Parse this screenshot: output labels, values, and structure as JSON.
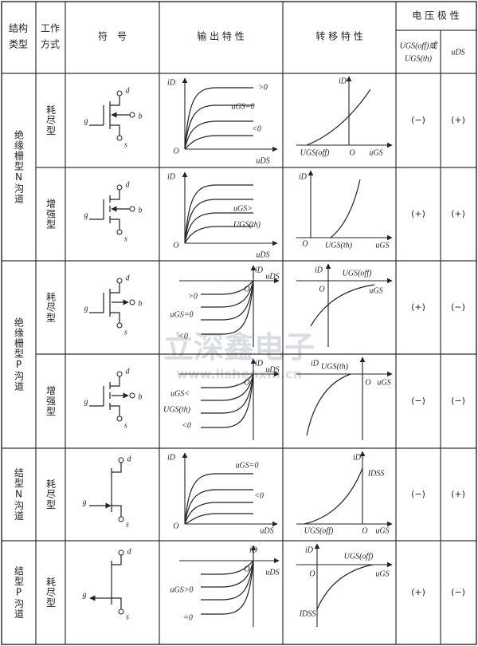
{
  "header": {
    "structure_type": [
      "结构",
      "类型"
    ],
    "work_mode": [
      "工作",
      "方式"
    ],
    "symbol": "符　号",
    "output": "输 出 特 性",
    "transfer": "转 移 特 性",
    "polarity": "电 压 极 性",
    "polarity_gs": [
      "UGS(off)或",
      "UGS(th)"
    ],
    "polarity_ds": "uDS"
  },
  "groups": [
    "绝缘栅型N沟道",
    "绝缘栅型P沟道",
    "结型N沟道",
    "结型P沟道"
  ],
  "rows": [
    {
      "mode": "耗尽型",
      "symbol": [
        "d",
        "g",
        "b",
        "s"
      ],
      "output": [
        "iD",
        "O",
        "uDS",
        ">0",
        "uGS=0",
        "<0"
      ],
      "transfer": [
        "iD",
        "O",
        "UGS(off)",
        "uGS"
      ],
      "gs": "(−)",
      "ds": "(+)"
    },
    {
      "mode": "增强型",
      "symbol": [
        "d",
        "g",
        "b",
        "s"
      ],
      "output": [
        "iD",
        "O",
        "uDS",
        "uGS>",
        "UGS(th)"
      ],
      "transfer": [
        "iD",
        "O",
        "UGS(th)",
        "uGS"
      ],
      "gs": "(+)",
      "ds": "(+)"
    },
    {
      "mode": "耗尽型",
      "symbol": [
        "d",
        "g",
        "b",
        "s"
      ],
      "output": [
        "iD",
        "uDS",
        "O",
        ">0",
        "uGS=0",
        "<0"
      ],
      "transfer": [
        "iD",
        "UGS(off)",
        "O",
        "uGS"
      ],
      "gs": "(+)",
      "ds": "(−)"
    },
    {
      "mode": "增强型",
      "symbol": [
        "d",
        "g",
        "b",
        "s"
      ],
      "output": [
        "iD",
        "uDS",
        "O",
        "uGS<",
        "UGS(th)",
        "<0"
      ],
      "transfer": [
        "iD",
        "UGS(th)",
        "O",
        "uGS"
      ],
      "gs": "(−)",
      "ds": "(−)"
    },
    {
      "mode": "耗尽型",
      "symbol": [
        "d",
        "g",
        "s"
      ],
      "output": [
        "iD",
        "O",
        "uDS",
        "uGS=0",
        "<0"
      ],
      "transfer": [
        "iD",
        "IDSS",
        "UGS(off)",
        "O",
        "uGS"
      ],
      "gs": "(−)",
      "ds": "(+)"
    },
    {
      "mode": "耗尽型",
      "symbol": [
        "d",
        "g",
        "s"
      ],
      "output": [
        "iD",
        "O",
        "uDS",
        "uGS>0",
        "=0"
      ],
      "transfer": [
        "iD",
        "UGS(off)",
        "O",
        "uGS",
        "IDSS"
      ],
      "gs": "(+)",
      "ds": "(−)"
    }
  ],
  "watermark": [
    "立深鑫电子",
    "www.lishenxin.cn"
  ]
}
